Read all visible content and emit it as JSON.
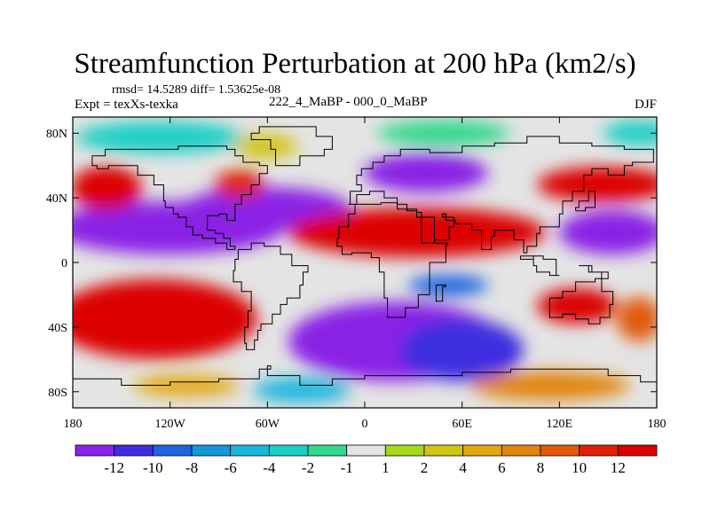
{
  "title": "Streamfunction Perturbation at 200 hPa (km2/s)",
  "stats_text": "rmsd= 14.5289  diff= 1.53625e-08",
  "experiment_text": "Expt = texXs-texka",
  "difference_label": "222_4_MaBP - 000_0_MaBP",
  "season": "DJF",
  "map_data": {
    "type": "filled-contour-map",
    "projection": "cylindrical-equidistant",
    "lon_range": [
      -180,
      180
    ],
    "lat_range": [
      -90,
      90
    ],
    "lon_ticks": [
      {
        "value": -180,
        "label": "180"
      },
      {
        "value": -120,
        "label": "120W"
      },
      {
        "value": -60,
        "label": "60W"
      },
      {
        "value": 0,
        "label": "0"
      },
      {
        "value": 60,
        "label": "60E"
      },
      {
        "value": 120,
        "label": "120E"
      },
      {
        "value": 180,
        "label": "180"
      }
    ],
    "lat_ticks": [
      {
        "value": 80,
        "label": "80N"
      },
      {
        "value": 40,
        "label": "40N"
      },
      {
        "value": 0,
        "label": "0"
      },
      {
        "value": -40,
        "label": "40S"
      },
      {
        "value": -80,
        "label": "80S"
      }
    ],
    "colorbar": {
      "labels": [
        "-12",
        "-10",
        "-8",
        "-6",
        "-4",
        "-2",
        "-1",
        "1",
        "2",
        "4",
        "6",
        "8",
        "10",
        "12"
      ],
      "colors": [
        "#8a24e6",
        "#3c2ee0",
        "#1f64df",
        "#1497db",
        "#1cb6dd",
        "#1ccfc4",
        "#2fd88a",
        "#e4e4e4",
        "#a6d81e",
        "#d2c412",
        "#e2a814",
        "#e2840e",
        "#e25a0c",
        "#e02006",
        "#dc0000"
      ]
    }
  }
}
